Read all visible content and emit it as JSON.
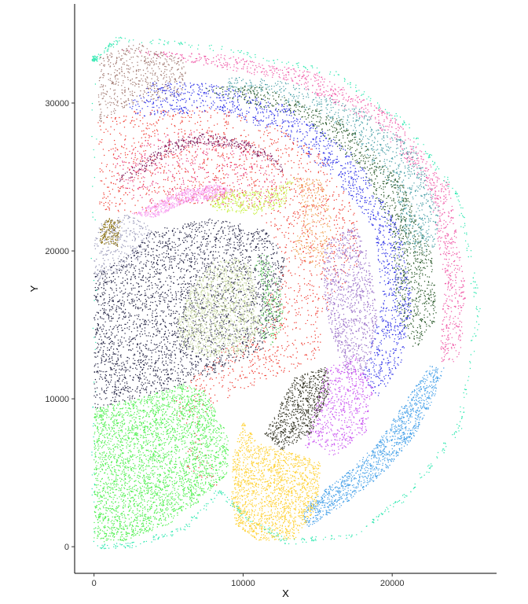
{
  "chart_data": {
    "type": "scatter",
    "title": "",
    "xlabel": "X",
    "ylabel": "Y",
    "xlim": [
      -1300,
      27000
    ],
    "ylim": [
      -1800,
      36700
    ],
    "x_ticks": [
      0,
      10000,
      20000
    ],
    "x_tick_labels": [
      "0",
      "10000",
      "20000"
    ],
    "y_ticks": [
      0,
      10000,
      20000,
      30000
    ],
    "y_tick_labels": [
      "0",
      "10000",
      "20000",
      "30000"
    ],
    "grid": false,
    "legend": "none",
    "series": [
      {
        "color": "#2ee8b0",
        "region": [
          [
            100,
            33000
          ],
          [
            1800,
            34400
          ],
          [
            9000,
            33600
          ],
          [
            16000,
            32000
          ],
          [
            21000,
            28500
          ],
          [
            24500,
            23500
          ],
          [
            25800,
            16000
          ],
          [
            24500,
            8000
          ],
          [
            21000,
            3500
          ],
          [
            17500,
            800
          ],
          [
            13000,
            300
          ],
          [
            10000,
            2200
          ],
          [
            8500,
            3800
          ],
          [
            6000,
            1200
          ],
          [
            2500,
            100
          ],
          [
            0,
            0
          ],
          [
            0,
            33000
          ]
        ],
        "center": [
          13000,
          17000
        ],
        "count": 700,
        "mode": "ring"
      },
      {
        "color": "#f05aa8",
        "region": [
          [
            1500,
            33600
          ],
          [
            8500,
            33300
          ],
          [
            15000,
            32000
          ],
          [
            20000,
            29200
          ],
          [
            23800,
            24500
          ],
          [
            25000,
            17000
          ],
          [
            24500,
            12500
          ],
          [
            23200,
            12500
          ],
          [
            23500,
            18000
          ],
          [
            22500,
            24000
          ],
          [
            19000,
            28500
          ],
          [
            13000,
            31500
          ],
          [
            5000,
            33000
          ]
        ],
        "count": 1100
      },
      {
        "color": "#a07870",
        "region": [
          [
            300,
            33100
          ],
          [
            3000,
            34100
          ],
          [
            6200,
            32800
          ],
          [
            6000,
            30500
          ],
          [
            2200,
            29800
          ],
          [
            600,
            28800
          ],
          [
            300,
            28500
          ]
        ],
        "count": 550
      },
      {
        "color": "#4aa0a8",
        "region": [
          [
            9000,
            31800
          ],
          [
            13000,
            31500
          ],
          [
            18000,
            29500
          ],
          [
            21500,
            27000
          ],
          [
            23200,
            23000
          ],
          [
            22800,
            19800
          ],
          [
            21000,
            19800
          ],
          [
            20200,
            24000
          ],
          [
            17000,
            28200
          ],
          [
            12000,
            30500
          ],
          [
            9000,
            30800
          ]
        ],
        "count": 850
      },
      {
        "color": "#2a5a2a",
        "region": [
          [
            7000,
            31000
          ],
          [
            11000,
            31200
          ],
          [
            16500,
            29000
          ],
          [
            20500,
            25000
          ],
          [
            22800,
            19500
          ],
          [
            23000,
            15200
          ],
          [
            21500,
            13300
          ],
          [
            20300,
            15800
          ],
          [
            20000,
            21000
          ],
          [
            18000,
            25500
          ],
          [
            14000,
            29000
          ],
          [
            9000,
            30300
          ]
        ],
        "count": 1200
      },
      {
        "color": "#2b2fe8",
        "region": [
          [
            2200,
            29800
          ],
          [
            4000,
            31500
          ],
          [
            8000,
            31300
          ],
          [
            13000,
            29800
          ],
          [
            17500,
            26500
          ],
          [
            20500,
            21500
          ],
          [
            21400,
            16500
          ],
          [
            20600,
            12200
          ],
          [
            19000,
            10000
          ],
          [
            18000,
            11500
          ],
          [
            19300,
            16500
          ],
          [
            18800,
            21500
          ],
          [
            16200,
            24800
          ],
          [
            12500,
            28000
          ],
          [
            7800,
            29400
          ],
          [
            3000,
            29000
          ]
        ],
        "count": 1500
      },
      {
        "color": "#f03a30",
        "region": [
          [
            200,
            29000
          ],
          [
            3000,
            29500
          ],
          [
            8000,
            29700
          ],
          [
            12500,
            28500
          ],
          [
            15500,
            26300
          ],
          [
            17500,
            23000
          ],
          [
            18000,
            19500
          ],
          [
            16000,
            16500
          ],
          [
            15000,
            12800
          ],
          [
            12500,
            11500
          ],
          [
            9500,
            10500
          ],
          [
            7000,
            8500
          ],
          [
            6000,
            5500
          ],
          [
            7500,
            4500
          ],
          [
            8500,
            3800
          ],
          [
            7000,
            7500
          ],
          [
            5000,
            9500
          ],
          [
            7500,
            12500
          ],
          [
            11000,
            15000
          ],
          [
            12800,
            19500
          ],
          [
            11000,
            22800
          ],
          [
            7000,
            23200
          ],
          [
            3000,
            22500
          ],
          [
            400,
            22800
          ]
        ],
        "count": 1800
      },
      {
        "color": "#e83a7a",
        "region": [
          [
            1200,
            27000
          ],
          [
            4500,
            28000
          ],
          [
            8000,
            28200
          ],
          [
            11500,
            27000
          ],
          [
            13000,
            24500
          ],
          [
            12000,
            22800
          ],
          [
            8000,
            23200
          ],
          [
            3000,
            23200
          ],
          [
            1500,
            24500
          ]
        ],
        "count": 500
      },
      {
        "color": "#7a1a5a",
        "region": [
          [
            1500,
            24800
          ],
          [
            3000,
            26000
          ],
          [
            5000,
            27400
          ],
          [
            7500,
            28000
          ],
          [
            10000,
            27500
          ],
          [
            12500,
            26300
          ],
          [
            12700,
            25200
          ],
          [
            11500,
            26200
          ],
          [
            9000,
            27000
          ],
          [
            7000,
            27200
          ],
          [
            5000,
            26500
          ],
          [
            3300,
            25300
          ],
          [
            1800,
            24600
          ]
        ],
        "count": 350
      },
      {
        "color": "#f8a0f0",
        "region": [
          [
            2500,
            22500
          ],
          [
            4200,
            23300
          ],
          [
            6200,
            24200
          ],
          [
            8200,
            24500
          ],
          [
            9500,
            24000
          ],
          [
            8000,
            23500
          ],
          [
            6000,
            23200
          ],
          [
            4000,
            22200
          ]
        ],
        "count": 600
      },
      {
        "color": "#c8f040",
        "region": [
          [
            7600,
            23600
          ],
          [
            9000,
            24100
          ],
          [
            11000,
            24000
          ],
          [
            12500,
            24400
          ],
          [
            13500,
            25000
          ],
          [
            12700,
            23000
          ],
          [
            10500,
            22400
          ],
          [
            8000,
            22700
          ]
        ],
        "count": 350
      },
      {
        "color": "#f0a050",
        "region": [
          [
            13500,
            25000
          ],
          [
            15300,
            24800
          ],
          [
            16000,
            22300
          ],
          [
            15600,
            19200
          ],
          [
            14800,
            18800
          ],
          [
            13200,
            19800
          ],
          [
            14000,
            22300
          ]
        ],
        "count": 280
      },
      {
        "color": "#8a7010",
        "region": [
          [
            400,
            20500
          ],
          [
            1600,
            20300
          ],
          [
            1800,
            22000
          ],
          [
            1000,
            22300
          ],
          [
            400,
            21500
          ]
        ],
        "count": 180
      },
      {
        "color": "#9898b8",
        "region": [
          [
            0,
            17900
          ],
          [
            1500,
            18500
          ],
          [
            3000,
            19300
          ],
          [
            4000,
            21500
          ],
          [
            2500,
            22500
          ],
          [
            400,
            22000
          ],
          [
            0,
            20500
          ]
        ],
        "count": 300
      },
      {
        "color": "#252545",
        "region": [
          [
            0,
            9300
          ],
          [
            3000,
            10000
          ],
          [
            6000,
            11000
          ],
          [
            9000,
            12000
          ],
          [
            11500,
            13500
          ],
          [
            12500,
            15500
          ],
          [
            12800,
            19500
          ],
          [
            11500,
            21500
          ],
          [
            8000,
            22200
          ],
          [
            4000,
            21500
          ],
          [
            2000,
            19500
          ],
          [
            0,
            18500
          ]
        ],
        "count": 3200
      },
      {
        "color": "#c8d8a0",
        "region": [
          [
            5800,
            13500
          ],
          [
            7500,
            12800
          ],
          [
            10000,
            13000
          ],
          [
            11200,
            14500
          ],
          [
            10800,
            17500
          ],
          [
            10500,
            19000
          ],
          [
            9500,
            19500
          ],
          [
            8000,
            19200
          ],
          [
            6500,
            17500
          ],
          [
            5500,
            15000
          ]
        ],
        "count": 1300
      },
      {
        "color": "#50c050",
        "region": [
          [
            10600,
            19300
          ],
          [
            11600,
            20000
          ],
          [
            12500,
            17500
          ],
          [
            12800,
            15000
          ],
          [
            11800,
            13500
          ],
          [
            11000,
            14500
          ],
          [
            11300,
            17500
          ]
        ],
        "count": 220
      },
      {
        "color": "#9a70c8",
        "region": [
          [
            15500,
            20500
          ],
          [
            17500,
            21800
          ],
          [
            18500,
            19500
          ],
          [
            19000,
            15500
          ],
          [
            18500,
            12000
          ],
          [
            17000,
            11500
          ],
          [
            16000,
            14000
          ],
          [
            15200,
            17500
          ]
        ],
        "count": 900
      },
      {
        "color": "#c850f0",
        "region": [
          [
            14000,
            6500
          ],
          [
            15500,
            12000
          ],
          [
            17500,
            13000
          ],
          [
            18800,
            11000
          ],
          [
            18300,
            7800
          ],
          [
            16000,
            6000
          ],
          [
            15000,
            7000
          ]
        ],
        "count": 650
      },
      {
        "color": "#303020",
        "region": [
          [
            11000,
            6800
          ],
          [
            13500,
            11500
          ],
          [
            15700,
            12200
          ],
          [
            15800,
            10500
          ],
          [
            14500,
            7500
          ],
          [
            12500,
            6500
          ],
          [
            11500,
            7600
          ]
        ],
        "count": 750
      },
      {
        "color": "#45a0e8",
        "region": [
          [
            14200,
            1200
          ],
          [
            17000,
            3000
          ],
          [
            19500,
            5000
          ],
          [
            21500,
            7500
          ],
          [
            22800,
            10000
          ],
          [
            23500,
            12200
          ],
          [
            22500,
            12200
          ],
          [
            21000,
            10000
          ],
          [
            19000,
            7000
          ],
          [
            17000,
            5000
          ],
          [
            15000,
            3500
          ],
          [
            14000,
            2500
          ]
        ],
        "count": 1200
      },
      {
        "color": "#ffd030",
        "region": [
          [
            9500,
            1500
          ],
          [
            11000,
            400
          ],
          [
            13500,
            500
          ],
          [
            15000,
            2800
          ],
          [
            15200,
            5700
          ],
          [
            13500,
            6300
          ],
          [
            11000,
            7000
          ],
          [
            10000,
            8500
          ],
          [
            9300,
            6000
          ],
          [
            9200,
            3500
          ]
        ],
        "count": 1700
      },
      {
        "color": "#50f050",
        "region": [
          [
            0,
            300
          ],
          [
            2000,
            400
          ],
          [
            5000,
            1500
          ],
          [
            7000,
            3000
          ],
          [
            9000,
            5000
          ],
          [
            9000,
            7500
          ],
          [
            7500,
            10500
          ],
          [
            6000,
            11000
          ],
          [
            3500,
            10200
          ],
          [
            0,
            9300
          ]
        ],
        "count": 3300
      }
    ]
  }
}
